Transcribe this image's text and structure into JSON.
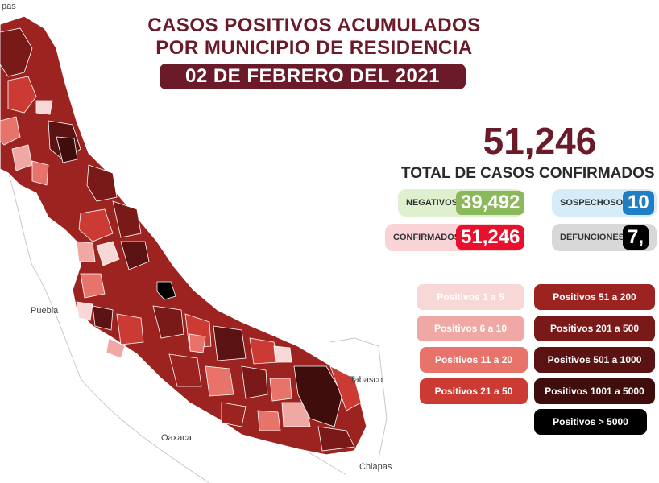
{
  "header": {
    "title_line1": "CASOS POSITIVOS ACUMULADOS",
    "title_line2": "POR MUNICIPIO DE RESIDENCIA",
    "date": "02 DE FEBRERO DEL 2021"
  },
  "summary": {
    "total": "51,246",
    "total_label": "TOTAL DE CASOS CONFIRMADOS",
    "negativos_label": "NEGATIVOS",
    "negativos_value": "39,492",
    "sospechosos_label": "SOSPECHOSOS",
    "sospechosos_value": "10",
    "confirmados_label": "CONFIRMADOS",
    "confirmados_value": "51,246",
    "defunciones_label": "DEFUNCIONES",
    "defunciones_value": "7,"
  },
  "legend": [
    {
      "label": "Positivos 1 a 5",
      "color": "#f8d7d7",
      "text_color": "#ffffff"
    },
    {
      "label": "Positivos 6 a 10",
      "color": "#f0a8a4",
      "text_color": "#ffffff"
    },
    {
      "label": "Positivos 11 a 20",
      "color": "#e8736b",
      "text_color": "#ffffff"
    },
    {
      "label": "Positivos 21 a 50",
      "color": "#cc3b33",
      "text_color": "#ffffff"
    },
    {
      "label": "Positivos 51 a 200",
      "color": "#9c2320",
      "text_color": "#ffffff"
    },
    {
      "label": "Positivos 201 a 500",
      "color": "#7a1a18",
      "text_color": "#ffffff"
    },
    {
      "label": "Positivos 501 a 1000",
      "color": "#5a1312",
      "text_color": "#ffffff"
    },
    {
      "label": "Positivos 1001 a 5000",
      "color": "#3e0d0c",
      "text_color": "#ffffff"
    },
    {
      "label": "Positivos > 5000",
      "color": "#000000",
      "text_color": "#ffffff"
    }
  ],
  "map_labels": {
    "puebla": "Puebla",
    "oaxaca": "Oaxaca",
    "tabasco": "Tabasco",
    "chiapas": "Chiapas",
    "top_left": "pas"
  },
  "colors": {
    "title": "#6b1a2a",
    "negativos_bg": "#dff0cf",
    "negativos_val": "#8ab85a",
    "sospechosos_bg": "#d6ecf8",
    "sospechosos_val": "#1f7ec4",
    "confirmados_bg": "#f9d3d6",
    "confirmados_val": "#e8102c",
    "defunciones_bg": "#d8d8d8",
    "defunciones_val": "#000000"
  }
}
